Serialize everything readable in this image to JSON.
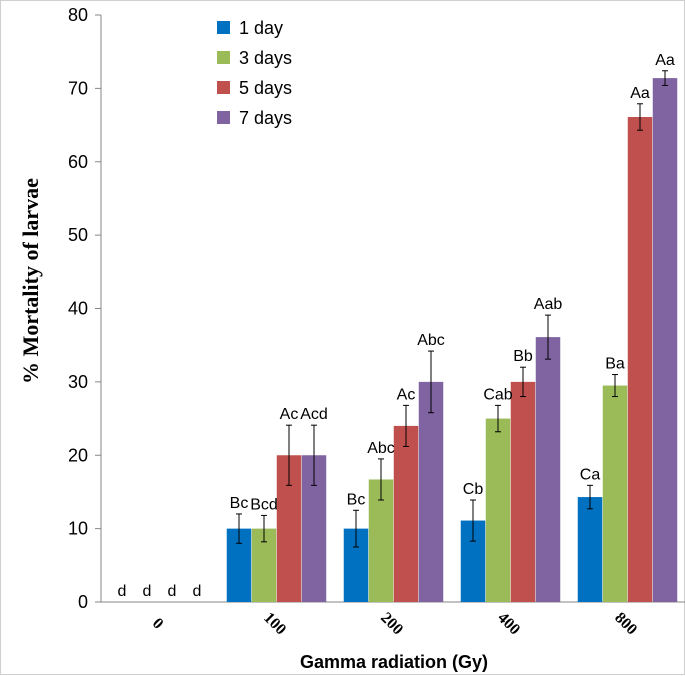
{
  "chart_data": {
    "type": "bar",
    "title": "",
    "xlabel": "Gamma radiation (Gy)",
    "ylabel": "%  Mortality of larvae",
    "ylim": [
      0,
      80
    ],
    "yticks": [
      0,
      10,
      20,
      30,
      40,
      50,
      60,
      70,
      80
    ],
    "categories": [
      "0",
      "100",
      "200",
      "400",
      "800"
    ],
    "legend_position": "top-left",
    "series": [
      {
        "name": "1 day",
        "color": "#0070c0",
        "values": [
          0,
          10,
          10,
          11.1,
          14.3
        ],
        "errors": [
          0,
          2,
          2.5,
          2.8,
          1.6
        ],
        "labels": [
          "d",
          "Bc",
          "Bc",
          "Cb",
          "Ca"
        ]
      },
      {
        "name": "3 days",
        "color": "#9bbb59",
        "values": [
          0,
          10,
          16.7,
          25,
          29.5
        ],
        "errors": [
          0,
          1.8,
          2.8,
          1.8,
          1.5
        ],
        "labels": [
          "d",
          "Bcd",
          "Abc",
          "Cab",
          "Ba"
        ]
      },
      {
        "name": "5 days",
        "color": "#c0504d",
        "values": [
          0,
          20,
          24,
          30,
          66.1
        ],
        "errors": [
          0,
          4.1,
          2.8,
          2,
          1.8
        ],
        "labels": [
          "d",
          "Ac",
          "Ac",
          "Bb",
          "Aa"
        ]
      },
      {
        "name": "7 days",
        "color": "#8064a2",
        "values": [
          0,
          20,
          30,
          36.1,
          71.4
        ],
        "errors": [
          0,
          4.1,
          4.2,
          3,
          1
        ],
        "labels": [
          "d",
          "Acd",
          "Abc",
          "Aab",
          "Aa"
        ]
      }
    ]
  }
}
